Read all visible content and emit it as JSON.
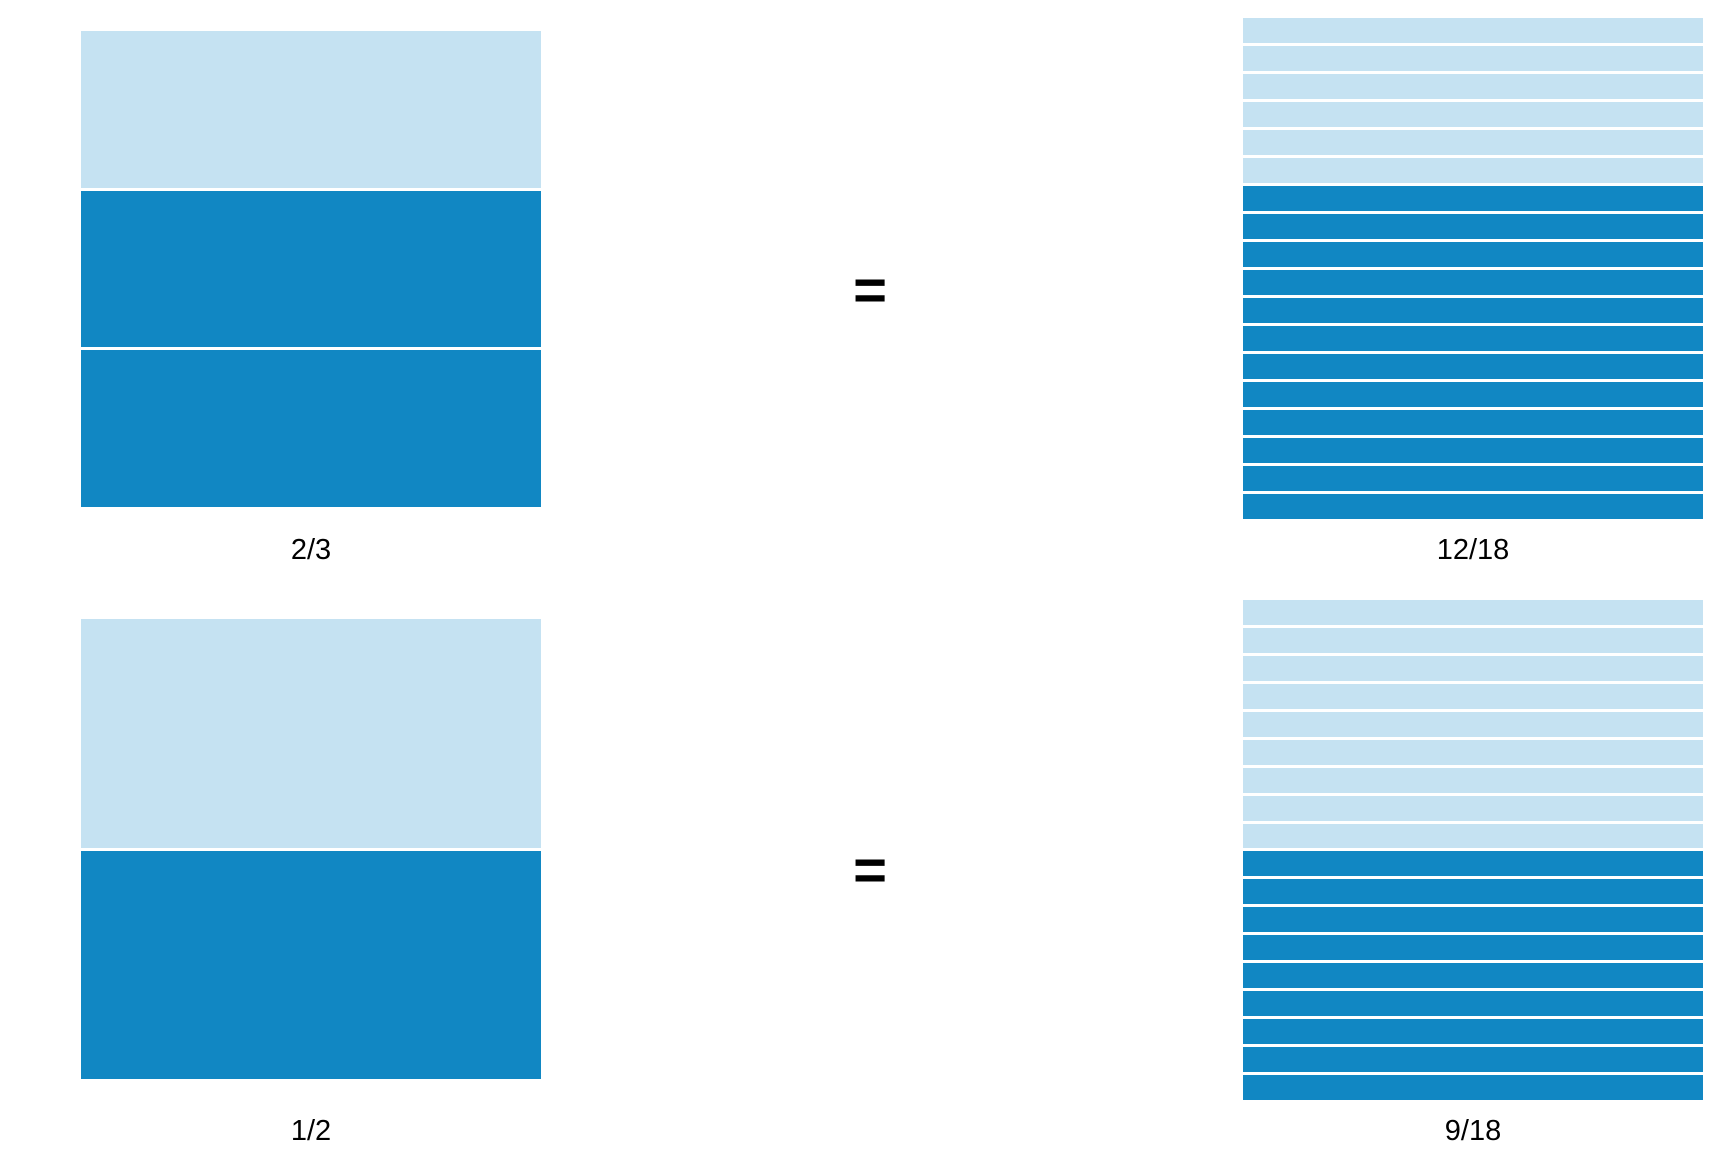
{
  "colors": {
    "shaded": "#1187c3",
    "unshaded": "#c5e2f2",
    "divider": "#ffffff",
    "text": "#000000"
  },
  "equals_symbol": "=",
  "rows": [
    {
      "left": {
        "label": "2/3",
        "total_parts": 3,
        "shaded_parts": 2
      },
      "right": {
        "label": "12/18",
        "total_parts": 18,
        "shaded_parts": 12
      }
    },
    {
      "left": {
        "label": "1/2",
        "total_parts": 2,
        "shaded_parts": 1
      },
      "right": {
        "label": "9/18",
        "total_parts": 18,
        "shaded_parts": 9
      }
    }
  ]
}
